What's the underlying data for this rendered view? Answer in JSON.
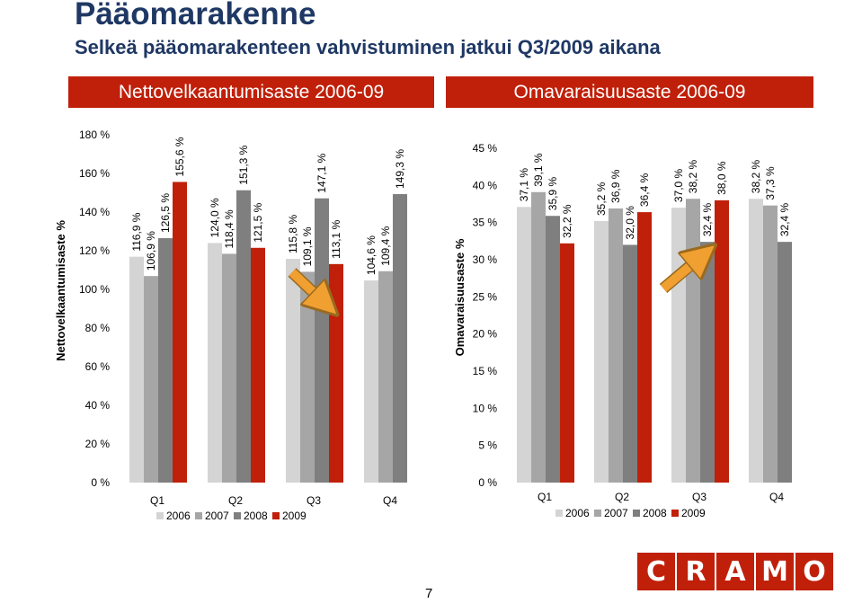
{
  "header": {
    "title": "Pääomarakenne",
    "subtitle": "Selkeä pääomarakenteen vahvistuminen jatkui Q3/2009 aikana"
  },
  "banners": {
    "left": "Nettovelkaantumisaste 2006-09",
    "right": "Omavaraisuusaste 2006-09"
  },
  "colors": {
    "banner": "#c0200a",
    "s2006": "#d4d4d4",
    "s2007": "#a6a6a6",
    "s2008": "#7f7f7f",
    "s2009": "#c0200a",
    "arrow": "#f0a030"
  },
  "page_number": "7",
  "logo": [
    "C",
    "R",
    "A",
    "M",
    "O"
  ],
  "chart_data": [
    {
      "type": "bar",
      "ylabel": "Nettovelkaantumisaste %",
      "ylim": [
        0,
        180
      ],
      "yticks": [
        "0 %",
        "20 %",
        "40 %",
        "60 %",
        "80 %",
        "100 %",
        "120 %",
        "140 %",
        "160 %",
        "180 %"
      ],
      "categories": [
        "Q1",
        "Q2",
        "Q3",
        "Q4"
      ],
      "series": [
        {
          "name": "2006",
          "values": [
            116.9,
            124.0,
            115.8,
            104.6
          ],
          "labels": [
            "116,9 %",
            "124,0 %",
            "115,8 %",
            "104,6 %"
          ]
        },
        {
          "name": "2007",
          "values": [
            106.9,
            118.4,
            109.1,
            109.4
          ],
          "labels": [
            "106,9 %",
            "118,4 %",
            "109,1 %",
            "109,4 %"
          ]
        },
        {
          "name": "2008",
          "values": [
            126.5,
            151.3,
            147.1,
            149.3
          ],
          "labels": [
            "126,5 %",
            "151,3 %",
            "147,1 %",
            "149,3 %"
          ]
        },
        {
          "name": "2009",
          "values": [
            155.6,
            121.5,
            113.1,
            null
          ],
          "labels": [
            "155,6 %",
            "121,5 %",
            "113,1 %",
            ""
          ]
        }
      ],
      "legend": "bottom"
    },
    {
      "type": "bar",
      "ylabel": "Omavaraisuusaste %",
      "ylim": [
        0,
        45
      ],
      "yticks": [
        "0 %",
        "5 %",
        "10 %",
        "15 %",
        "20 %",
        "25 %",
        "30 %",
        "35 %",
        "40 %",
        "45 %"
      ],
      "categories": [
        "Q1",
        "Q2",
        "Q3",
        "Q4"
      ],
      "series": [
        {
          "name": "2006",
          "values": [
            37.1,
            35.2,
            37.0,
            38.2
          ],
          "labels": [
            "37,1 %",
            "35,2 %",
            "37,0 %",
            "38,2 %"
          ]
        },
        {
          "name": "2007",
          "values": [
            39.1,
            36.9,
            38.2,
            37.3
          ],
          "labels": [
            "39,1 %",
            "36,9 %",
            "38,2 %",
            "37,3 %"
          ]
        },
        {
          "name": "2008",
          "values": [
            35.9,
            32.0,
            32.4,
            32.4
          ],
          "labels": [
            "35,9 %",
            "32,0 %",
            "32,4 %",
            "32,4 %"
          ]
        },
        {
          "name": "2009",
          "values": [
            32.2,
            36.4,
            38.0,
            null
          ],
          "labels": [
            "32,2 %",
            "36,4 %",
            "38,0 %",
            ""
          ]
        }
      ],
      "legend": "bottom"
    }
  ]
}
